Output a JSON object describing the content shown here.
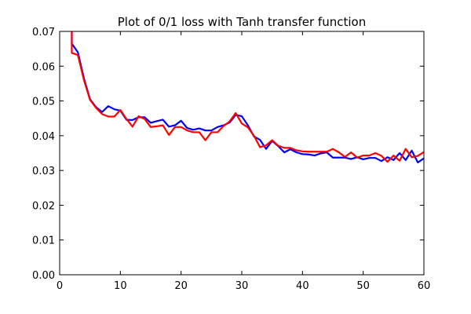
{
  "chart_data": {
    "type": "line",
    "title": "Plot of 0/1 loss with Tanh transfer function",
    "xlabel": "",
    "ylabel": "",
    "xlim": [
      0,
      60
    ],
    "ylim": [
      0.0,
      0.07
    ],
    "xticks": [
      0,
      10,
      20,
      30,
      40,
      50,
      60
    ],
    "xtick_labels": [
      "0",
      "10",
      "20",
      "30",
      "40",
      "50",
      "60"
    ],
    "yticks": [
      0.0,
      0.01,
      0.02,
      0.03,
      0.04,
      0.05,
      0.06,
      0.07
    ],
    "ytick_labels": [
      "0.00",
      "0.01",
      "0.02",
      "0.03",
      "0.04",
      "0.05",
      "0.06",
      "0.07"
    ],
    "grid": false,
    "legend": null,
    "x": [
      2,
      3,
      4,
      5,
      6,
      7,
      8,
      9,
      10,
      11,
      12,
      13,
      14,
      15,
      16,
      17,
      18,
      19,
      20,
      21,
      22,
      23,
      24,
      25,
      26,
      27,
      28,
      29,
      30,
      31,
      32,
      33,
      34,
      35,
      36,
      37,
      38,
      39,
      40,
      41,
      42,
      43,
      44,
      45,
      46,
      47,
      48,
      49,
      50,
      51,
      52,
      53,
      54,
      55,
      56,
      57,
      58,
      59,
      60
    ],
    "series": [
      {
        "name": "blue",
        "color": "#0000ff",
        "values": [
          0.0665,
          0.064,
          0.0565,
          0.0505,
          0.0482,
          0.0468,
          0.0485,
          0.0476,
          0.0472,
          0.0446,
          0.0445,
          0.0453,
          0.0453,
          0.0437,
          0.0442,
          0.0446,
          0.0426,
          0.043,
          0.0443,
          0.0422,
          0.0417,
          0.0421,
          0.0415,
          0.0415,
          0.0425,
          0.043,
          0.0438,
          0.046,
          0.0456,
          0.043,
          0.0398,
          0.0388,
          0.0362,
          0.0385,
          0.037,
          0.0352,
          0.0361,
          0.0352,
          0.0347,
          0.0346,
          0.0343,
          0.0349,
          0.0352,
          0.0337,
          0.0337,
          0.0337,
          0.0333,
          0.0338,
          0.0332,
          0.0336,
          0.0336,
          0.0327,
          0.0338,
          0.033,
          0.035,
          0.033,
          0.0357,
          0.0323,
          0.0335
        ]
      },
      {
        "name": "red",
        "color": "#ff0000",
        "values": [
          0.0638,
          0.0632,
          0.056,
          0.0503,
          0.048,
          0.0462,
          0.0455,
          0.0455,
          0.0474,
          0.0448,
          0.0426,
          0.0456,
          0.0448,
          0.0425,
          0.0427,
          0.043,
          0.0402,
          0.0425,
          0.0425,
          0.0415,
          0.041,
          0.041,
          0.0387,
          0.041,
          0.041,
          0.0428,
          0.0441,
          0.0465,
          0.0435,
          0.0424,
          0.04,
          0.0367,
          0.0372,
          0.0387,
          0.0371,
          0.0365,
          0.0365,
          0.0358,
          0.0355,
          0.0354,
          0.0354,
          0.0354,
          0.0354,
          0.0362,
          0.0352,
          0.0339,
          0.0352,
          0.0337,
          0.0343,
          0.0343,
          0.035,
          0.0342,
          0.0325,
          0.0343,
          0.0328,
          0.0362,
          0.0338,
          0.0342,
          0.0353
        ]
      }
    ]
  }
}
